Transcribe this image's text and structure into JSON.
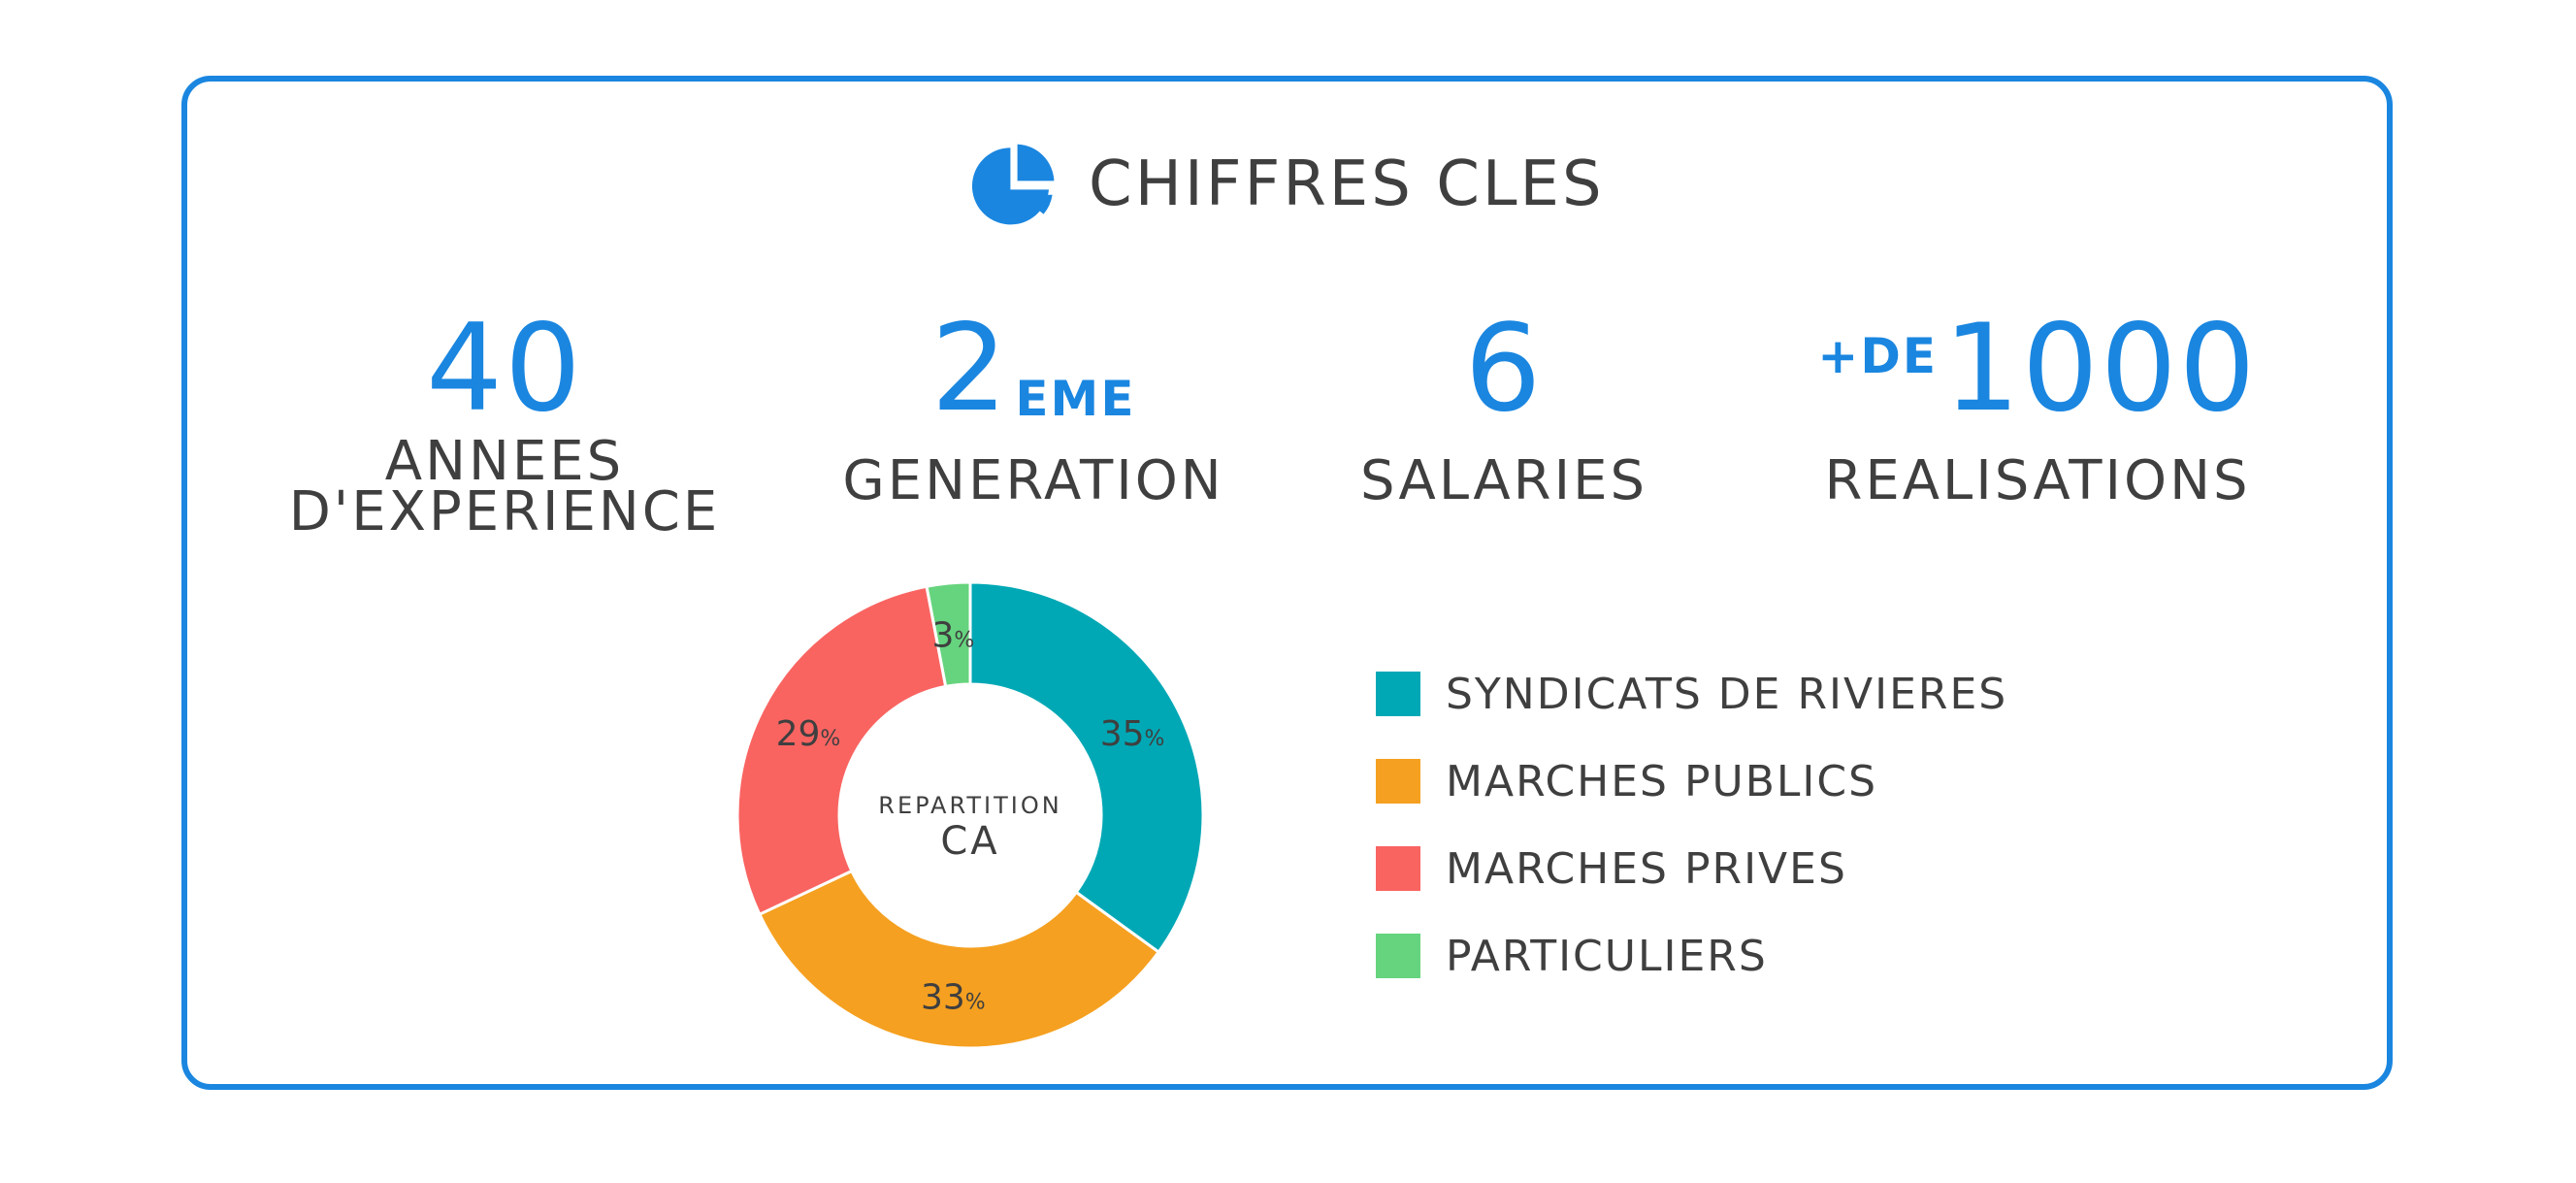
{
  "title": "CHIFFRES CLES",
  "title_icon": "pie-chart-icon",
  "accent_color": "#1a86e0",
  "text_color": "#3f3f3f",
  "stats": [
    {
      "number": "40",
      "label_line1": "ANNEES",
      "label_line2": "D'EXPERIENCE"
    },
    {
      "number": "2",
      "suffix": "EME",
      "label_line1": "GENERATION"
    },
    {
      "number": "6",
      "label_line1": "SALARIES"
    },
    {
      "prefix": "+DE",
      "number": "1000",
      "label_line1": "REALISATIONS"
    }
  ],
  "chart_data": {
    "type": "pie",
    "title": "",
    "center_label_line1": "REPARTITION",
    "center_label_line2": "CA",
    "categories": [
      "SYNDICATS DE RIVIERES",
      "MARCHES PUBLICS",
      "MARCHES PRIVES",
      "PARTICULIERS"
    ],
    "values": [
      35,
      33,
      29,
      3
    ],
    "unit": "%",
    "colors": [
      "#00a8b5",
      "#f5a020",
      "#f96461",
      "#66d47e"
    ],
    "legend_placement": "right"
  }
}
